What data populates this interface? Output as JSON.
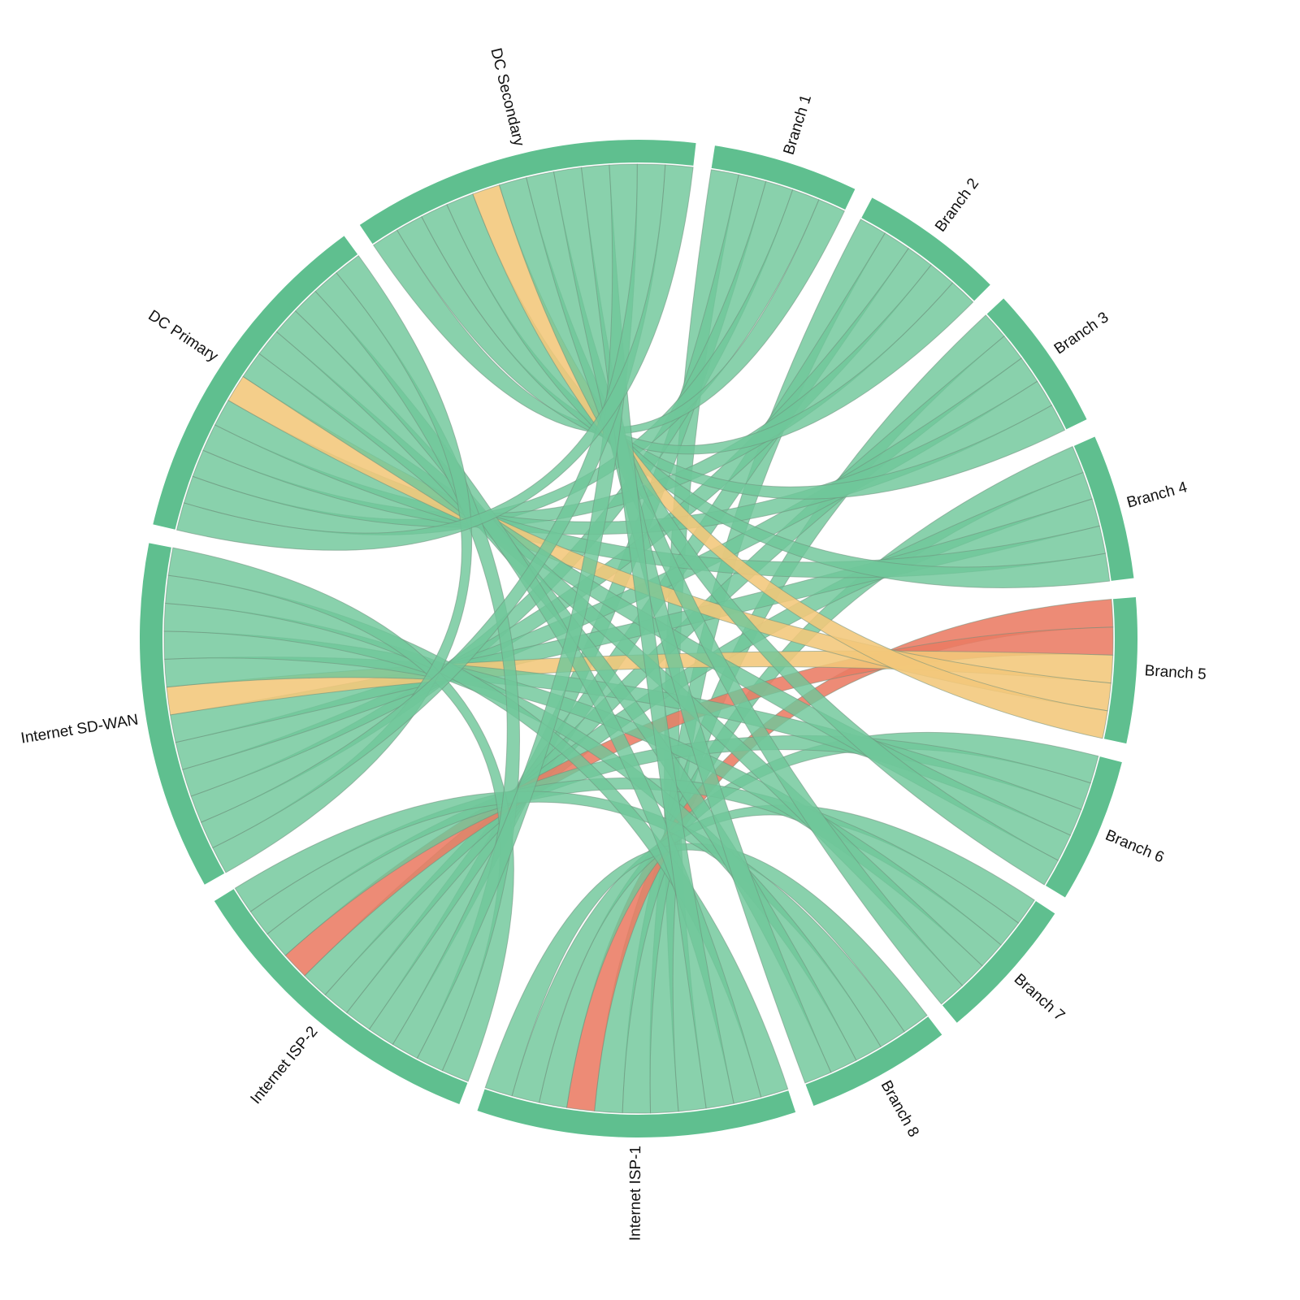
{
  "chart_data": {
    "type": "chord",
    "nodes": [
      "Branch 1",
      "Branch 2",
      "Branch 3",
      "Branch 4",
      "Branch 5",
      "Branch 6",
      "Branch 7",
      "Branch 8",
      "Internet ISP-1",
      "Internet ISP-2",
      "Internet SD-WAN",
      "DC Primary",
      "DC Secondary"
    ],
    "links": [
      {
        "source": "Branch 1",
        "target": "Internet ISP-1",
        "value": 1,
        "status": "normal"
      },
      {
        "source": "Branch 1",
        "target": "Internet ISP-2",
        "value": 1,
        "status": "normal"
      },
      {
        "source": "Branch 1",
        "target": "Internet SD-WAN",
        "value": 1,
        "status": "normal"
      },
      {
        "source": "Branch 1",
        "target": "DC Primary",
        "value": 1,
        "status": "normal"
      },
      {
        "source": "Branch 1",
        "target": "DC Secondary",
        "value": 1,
        "status": "normal"
      },
      {
        "source": "Branch 2",
        "target": "Internet ISP-1",
        "value": 1,
        "status": "normal"
      },
      {
        "source": "Branch 2",
        "target": "Internet ISP-2",
        "value": 1,
        "status": "normal"
      },
      {
        "source": "Branch 2",
        "target": "Internet SD-WAN",
        "value": 1,
        "status": "normal"
      },
      {
        "source": "Branch 2",
        "target": "DC Primary",
        "value": 1,
        "status": "normal"
      },
      {
        "source": "Branch 2",
        "target": "DC Secondary",
        "value": 1,
        "status": "normal"
      },
      {
        "source": "Branch 3",
        "target": "Internet ISP-1",
        "value": 1,
        "status": "normal"
      },
      {
        "source": "Branch 3",
        "target": "Internet ISP-2",
        "value": 1,
        "status": "normal"
      },
      {
        "source": "Branch 3",
        "target": "Internet SD-WAN",
        "value": 1,
        "status": "normal"
      },
      {
        "source": "Branch 3",
        "target": "DC Primary",
        "value": 1,
        "status": "normal"
      },
      {
        "source": "Branch 3",
        "target": "DC Secondary",
        "value": 1,
        "status": "normal"
      },
      {
        "source": "Branch 4",
        "target": "Internet ISP-1",
        "value": 1,
        "status": "normal"
      },
      {
        "source": "Branch 4",
        "target": "Internet ISP-2",
        "value": 1,
        "status": "normal"
      },
      {
        "source": "Branch 4",
        "target": "Internet SD-WAN",
        "value": 1,
        "status": "normal"
      },
      {
        "source": "Branch 4",
        "target": "DC Primary",
        "value": 1,
        "status": "normal"
      },
      {
        "source": "Branch 4",
        "target": "DC Secondary",
        "value": 1,
        "status": "normal"
      },
      {
        "source": "Branch 5",
        "target": "Internet ISP-1",
        "value": 1,
        "status": "critical"
      },
      {
        "source": "Branch 5",
        "target": "Internet ISP-2",
        "value": 1,
        "status": "critical"
      },
      {
        "source": "Branch 5",
        "target": "Internet SD-WAN",
        "value": 1,
        "status": "warning"
      },
      {
        "source": "Branch 5",
        "target": "DC Primary",
        "value": 1,
        "status": "warning"
      },
      {
        "source": "Branch 5",
        "target": "DC Secondary",
        "value": 1,
        "status": "warning"
      },
      {
        "source": "Branch 6",
        "target": "Internet ISP-1",
        "value": 1,
        "status": "normal"
      },
      {
        "source": "Branch 6",
        "target": "Internet ISP-2",
        "value": 1,
        "status": "normal"
      },
      {
        "source": "Branch 6",
        "target": "Internet SD-WAN",
        "value": 1,
        "status": "normal"
      },
      {
        "source": "Branch 6",
        "target": "DC Primary",
        "value": 1,
        "status": "normal"
      },
      {
        "source": "Branch 6",
        "target": "DC Secondary",
        "value": 1,
        "status": "normal"
      },
      {
        "source": "Branch 7",
        "target": "Internet ISP-1",
        "value": 1,
        "status": "normal"
      },
      {
        "source": "Branch 7",
        "target": "Internet ISP-2",
        "value": 1,
        "status": "normal"
      },
      {
        "source": "Branch 7",
        "target": "Internet SD-WAN",
        "value": 1,
        "status": "normal"
      },
      {
        "source": "Branch 7",
        "target": "DC Primary",
        "value": 1,
        "status": "normal"
      },
      {
        "source": "Branch 7",
        "target": "DC Secondary",
        "value": 1,
        "status": "normal"
      },
      {
        "source": "Branch 8",
        "target": "Internet ISP-1",
        "value": 1,
        "status": "normal"
      },
      {
        "source": "Branch 8",
        "target": "Internet ISP-2",
        "value": 1,
        "status": "normal"
      },
      {
        "source": "Branch 8",
        "target": "Internet SD-WAN",
        "value": 1,
        "status": "normal"
      },
      {
        "source": "Branch 8",
        "target": "DC Primary",
        "value": 1,
        "status": "normal"
      },
      {
        "source": "Branch 8",
        "target": "DC Secondary",
        "value": 1,
        "status": "normal"
      },
      {
        "source": "Internet ISP-1",
        "target": "Internet SD-WAN",
        "value": 1,
        "status": "normal"
      },
      {
        "source": "Internet ISP-1",
        "target": "DC Primary",
        "value": 1,
        "status": "normal"
      },
      {
        "source": "Internet ISP-1",
        "target": "DC Secondary",
        "value": 1,
        "status": "normal"
      },
      {
        "source": "Internet ISP-2",
        "target": "Internet SD-WAN",
        "value": 1,
        "status": "normal"
      },
      {
        "source": "Internet ISP-2",
        "target": "DC Primary",
        "value": 1,
        "status": "normal"
      },
      {
        "source": "Internet ISP-2",
        "target": "DC Secondary",
        "value": 1,
        "status": "normal"
      },
      {
        "source": "Internet SD-WAN",
        "target": "DC Primary",
        "value": 1,
        "status": "normal"
      },
      {
        "source": "Internet SD-WAN",
        "target": "DC Secondary",
        "value": 1,
        "status": "normal"
      },
      {
        "source": "DC Primary",
        "target": "DC Secondary",
        "value": 1,
        "status": "normal"
      }
    ],
    "colors": {
      "group": "#5fbf8f",
      "normal": "#6fc79a",
      "warning": "#f2c77a",
      "critical": "#ea7b63"
    },
    "title": "",
    "legend": false
  }
}
